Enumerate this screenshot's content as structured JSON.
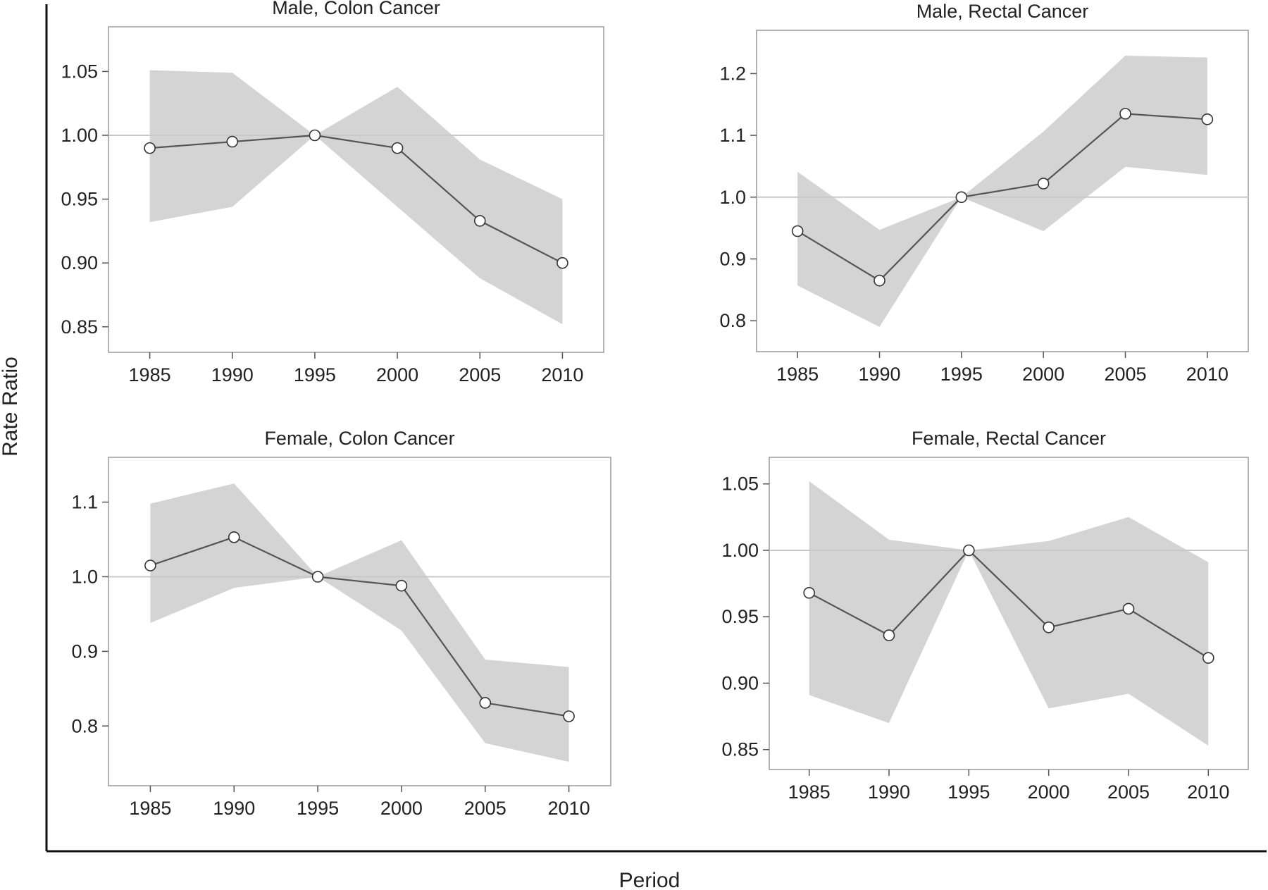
{
  "figure": {
    "ylabel": "Rate Ratio",
    "xlabel": "Period",
    "band_color": "#d4d4d4",
    "line_color": "#555555",
    "reference_line_color": "#c8c8c8",
    "marker_fill": "#ffffff"
  },
  "chart_data": [
    {
      "type": "line",
      "title": "Male, Colon Cancer",
      "x": [
        1985,
        1990,
        1995,
        2000,
        2005,
        2010
      ],
      "series": [
        {
          "values": [
            0.99,
            0.995,
            1.0,
            0.99,
            0.933,
            0.9
          ],
          "lower": [
            0.932,
            0.944,
            1.0,
            0.944,
            0.888,
            0.852
          ],
          "upper": [
            1.051,
            1.049,
            1.0,
            1.038,
            0.981,
            0.95
          ]
        }
      ],
      "reference_y": 1.0,
      "xticks": [
        1985,
        1990,
        1995,
        2000,
        2005,
        2010
      ],
      "yticks": [
        0.85,
        0.9,
        0.95,
        1.0,
        1.05
      ],
      "ytick_labels": [
        "0.85",
        "0.90",
        "0.95",
        "1.00",
        "1.05"
      ],
      "xlim": [
        1982.5,
        2012.5
      ],
      "ylim": [
        0.83,
        1.085
      ]
    },
    {
      "type": "line",
      "title": "Male, Rectal Cancer",
      "x": [
        1985,
        1990,
        1995,
        2000,
        2005,
        2010
      ],
      "series": [
        {
          "values": [
            0.945,
            0.865,
            1.0,
            1.022,
            1.135,
            1.126
          ],
          "lower": [
            0.857,
            0.79,
            1.0,
            0.945,
            1.049,
            1.036
          ],
          "upper": [
            1.041,
            0.947,
            1.0,
            1.106,
            1.229,
            1.226
          ]
        }
      ],
      "reference_y": 1.0,
      "xticks": [
        1985,
        1990,
        1995,
        2000,
        2005,
        2010
      ],
      "yticks": [
        0.8,
        0.9,
        1.0,
        1.1,
        1.2
      ],
      "ytick_labels": [
        "0.8",
        "0.9",
        "1.0",
        "1.1",
        "1.2"
      ],
      "xlim": [
        1982.5,
        2012.5
      ],
      "ylim": [
        0.75,
        1.27
      ]
    },
    {
      "type": "line",
      "title": "Female, Colon Cancer",
      "x": [
        1985,
        1990,
        1995,
        2000,
        2005,
        2010
      ],
      "series": [
        {
          "values": [
            1.015,
            1.053,
            1.0,
            0.988,
            0.831,
            0.813
          ],
          "lower": [
            0.938,
            0.985,
            1.0,
            0.928,
            0.777,
            0.752
          ],
          "upper": [
            1.098,
            1.125,
            1.0,
            1.049,
            0.889,
            0.879
          ]
        }
      ],
      "reference_y": 1.0,
      "xticks": [
        1985,
        1990,
        1995,
        2000,
        2005,
        2010
      ],
      "yticks": [
        0.8,
        0.9,
        1.0,
        1.1
      ],
      "ytick_labels": [
        "0.8",
        "0.9",
        "1.0",
        "1.1"
      ],
      "xlim": [
        1982.5,
        2012.5
      ],
      "ylim": [
        0.72,
        1.16
      ]
    },
    {
      "type": "line",
      "title": "Female, Rectal Cancer",
      "x": [
        1985,
        1990,
        1995,
        2000,
        2005,
        2010
      ],
      "series": [
        {
          "values": [
            0.968,
            0.936,
            1.0,
            0.942,
            0.956,
            0.919
          ],
          "lower": [
            0.891,
            0.87,
            1.0,
            0.881,
            0.892,
            0.853
          ],
          "upper": [
            1.052,
            1.008,
            1.0,
            1.007,
            1.025,
            0.991
          ]
        }
      ],
      "reference_y": 1.0,
      "xticks": [
        1985,
        1990,
        1995,
        2000,
        2005,
        2010
      ],
      "yticks": [
        0.85,
        0.9,
        0.95,
        1.0,
        1.05
      ],
      "ytick_labels": [
        "0.85",
        "0.90",
        "0.95",
        "1.00",
        "1.05"
      ],
      "xlim": [
        1982.5,
        2012.5
      ],
      "ylim": [
        0.835,
        1.07
      ]
    }
  ]
}
